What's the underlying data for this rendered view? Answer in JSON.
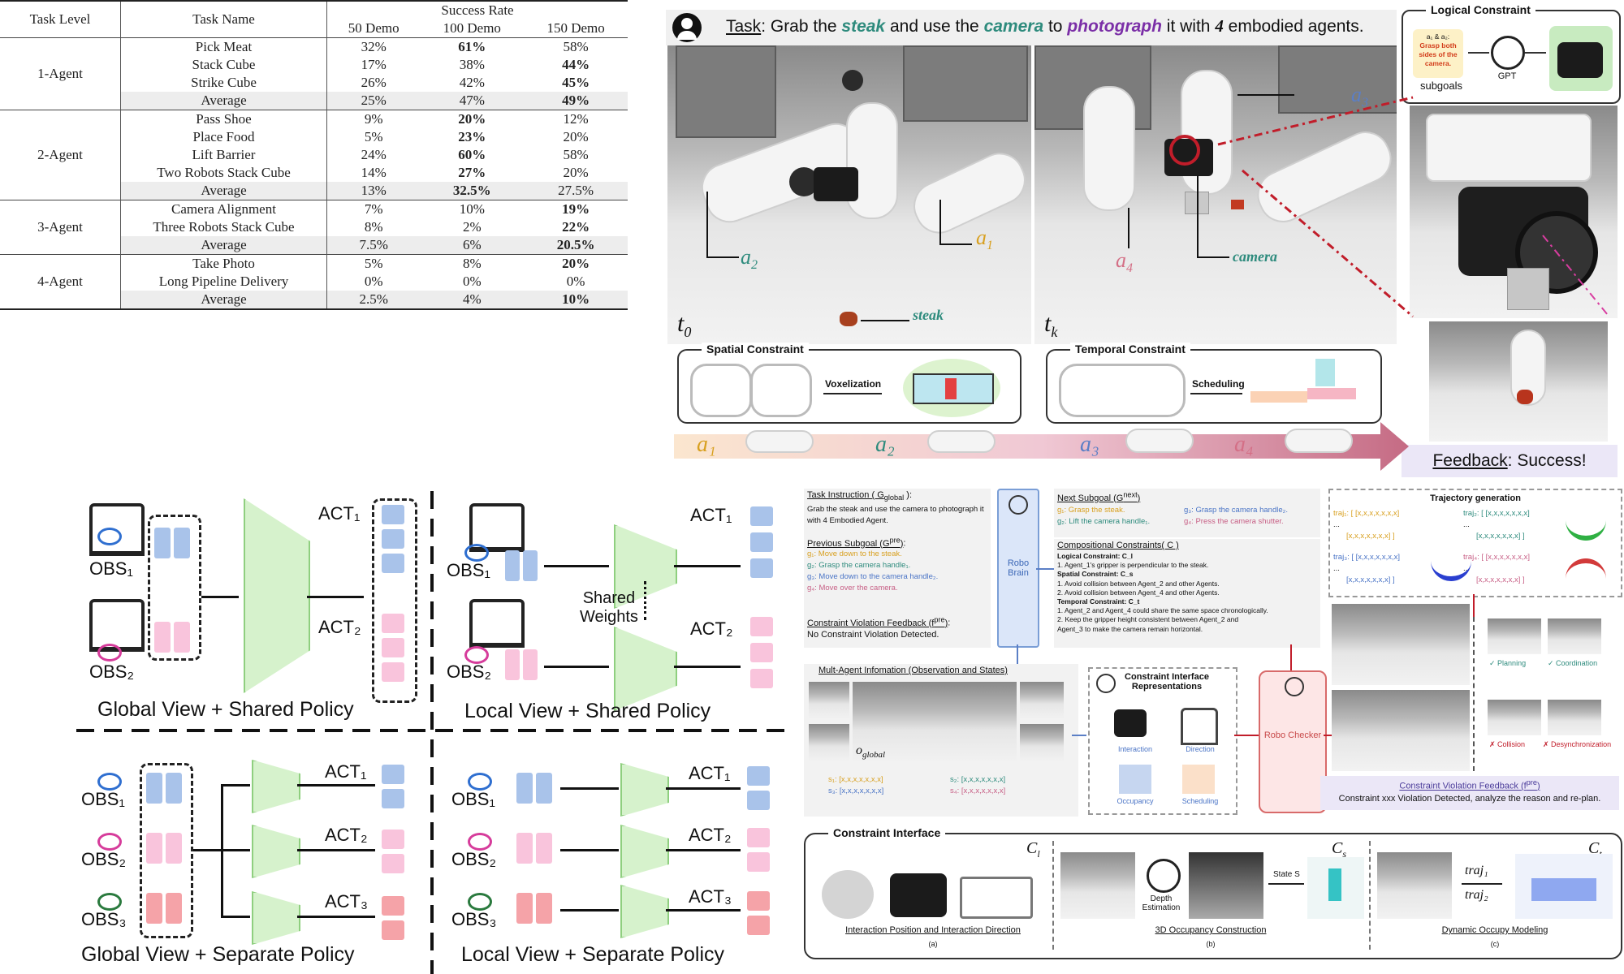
{
  "table": {
    "headers": {
      "level": "Task Level",
      "name": "Task Name",
      "success": "Success Rate",
      "cols": [
        "50 Demo",
        "100 Demo",
        "150 Demo"
      ]
    },
    "groups": [
      {
        "level": "1-Agent",
        "rows": [
          {
            "name": "Pick Meat",
            "v": [
              "32%",
              "61%",
              "58%"
            ],
            "bold": 1
          },
          {
            "name": "Stack Cube",
            "v": [
              "17%",
              "38%",
              "44%"
            ],
            "bold": 2
          },
          {
            "name": "Strike Cube",
            "v": [
              "26%",
              "42%",
              "45%"
            ],
            "bold": 2
          },
          {
            "name": "Average",
            "v": [
              "25%",
              "47%",
              "49%"
            ],
            "bold": 2,
            "avg": true
          }
        ]
      },
      {
        "level": "2-Agent",
        "rows": [
          {
            "name": "Pass Shoe",
            "v": [
              "9%",
              "20%",
              "12%"
            ],
            "bold": 1
          },
          {
            "name": "Place Food",
            "v": [
              "5%",
              "23%",
              "20%"
            ],
            "bold": 1
          },
          {
            "name": "Lift Barrier",
            "v": [
              "24%",
              "60%",
              "58%"
            ],
            "bold": 1
          },
          {
            "name": "Two Robots Stack Cube",
            "v": [
              "14%",
              "27%",
              "20%"
            ],
            "bold": 1
          },
          {
            "name": "Average",
            "v": [
              "13%",
              "32.5%",
              "27.5%"
            ],
            "bold": 1,
            "avg": true
          }
        ]
      },
      {
        "level": "3-Agent",
        "rows": [
          {
            "name": "Camera Alignment",
            "v": [
              "7%",
              "10%",
              "19%"
            ],
            "bold": 2
          },
          {
            "name": "Three Robots Stack Cube",
            "v": [
              "8%",
              "2%",
              "22%"
            ],
            "bold": 2
          },
          {
            "name": "Average",
            "v": [
              "7.5%",
              "6%",
              "20.5%"
            ],
            "bold": 2,
            "avg": true
          }
        ]
      },
      {
        "level": "4-Agent",
        "rows": [
          {
            "name": "Take Photo",
            "v": [
              "5%",
              "8%",
              "20%"
            ],
            "bold": 2
          },
          {
            "name": "Long Pipeline Delivery",
            "v": [
              "0%",
              "0%",
              "0%"
            ],
            "bold": -1
          },
          {
            "name": "Average",
            "v": [
              "2.5%",
              "4%",
              "10%"
            ],
            "bold": 2,
            "avg": true
          }
        ]
      }
    ]
  },
  "task": {
    "prefix": "Task",
    "t1": ": Grab the ",
    "steak": "steak",
    "t2": " and use the ",
    "camera": "camera",
    "t3": " to ",
    "photograph": "photograph",
    "t4": " it with ",
    "four": "4",
    "t5": " embodied agents."
  },
  "scene": {
    "a1": "a",
    "a1_sub": "1",
    "a2": "a",
    "a2_sub": "2",
    "a3": "a",
    "a3_sub": "3",
    "a4": "a",
    "a4_sub": "4",
    "steak": "steak",
    "camera": "camera",
    "t0": "t",
    "t0_sub": "0",
    "tk": "t",
    "tk_sub": "k"
  },
  "logical": {
    "title": "Logical Constraint",
    "note_head": "a₁ & a₂:",
    "note_body": "Grasp both sides of the camera.",
    "subgoals": "subgoals",
    "gpt": "GPT"
  },
  "spatial": {
    "title": "Spatial Constraint",
    "arrow": "Voxelization"
  },
  "temporal": {
    "title": "Temporal Constraint",
    "arrow": "Scheduling"
  },
  "timeline": {
    "labels": [
      "a₁",
      "a₂",
      "a₃",
      "a₄"
    ]
  },
  "feedback": {
    "prefix": "Feedback",
    "rest": ": Success!"
  },
  "policies": {
    "q1": "Global View + Shared Policy",
    "q2": "Local View + Shared Policy",
    "q3": "Global View + Separate Policy",
    "q4": "Local View + Separate Policy",
    "obs1": "OBS₁",
    "obs2": "OBS₂",
    "obs3": "OBS₃",
    "act1": "ACT₁",
    "act2": "ACT₂",
    "act3": "ACT₃",
    "shared": "Shared",
    "weights": "Weights"
  },
  "pipeline": {
    "task_instr_title": "Task Instruction ( G",
    "task_instr_sub": "global",
    "task_instr_end": " ):",
    "task_instr_text": "Grab the steak and use the camera to photograph it with 4 Embodied Agent.",
    "prev_title": "Previous Subgoal (G",
    "prev_sup": "pre",
    "prev_end": "):",
    "prev_items": [
      ": Move down to the steak.",
      ": Grasp the camera handle₁.",
      ": Move down to the camera handle₂.",
      ": Move over the camera."
    ],
    "cvf_title": "Constraint Violation Feedback (f",
    "cvf_sup": "pre",
    "cvf_end": "):",
    "cvf_text": "No Constraint Violation Detected.",
    "robo_brain": "Robo Brain",
    "robo_checker": "Robo Checker",
    "next_title": "Next Subgoal (G",
    "next_sup": "next",
    "next_end": ")",
    "next_items": [
      "Grasp the steak.",
      "Grasp the camera handle₂.",
      "Lift the camera handle₁.",
      "Press the camera shutter."
    ],
    "comp_title": "Compositional Constraints( C )",
    "comp_lines": [
      "Logical Constraint: C_l",
      "1.  Agent_1's gripper is perpendicular to the steak.",
      "Spatial Constraint: C_s",
      "1.  Avoid collision between Agent_2 and other Agents.",
      "2.  Avoid collision between Agent_4 and other Agents.",
      "Temporal Constraint: C_t",
      "1.  Agent_2 and Agent_4 could share the same space chronologically.",
      "2.  Keep the gripper height consistent between Agent_2 and",
      "Agent_3 to make the camera remain horizontal."
    ],
    "multi_title": "Mult-Agent Infomation (Observation and States)",
    "o_global": "o",
    "o_global_sub": "global",
    "states": [
      "s₁: [x,x,x,x,x,x,x]",
      "s₂: [x,x,x,x,x,x,x]",
      "s₃: [x,x,x,x,x,x,x]",
      "s₄: [x,x,x,x,x,x,x]"
    ],
    "cir_title": "Constraint Interface Representations",
    "cir_items": [
      "Interaction",
      "Direction",
      "Occupancy",
      "Scheduling"
    ],
    "traj_title": "Trajectory generation",
    "traj_items": [
      "traj₁: [ [x,x,x,x,x,x,x]",
      "traj₂: [ [x,x,x,x,x,x,x]",
      "traj₃: [ [x,x,x,x,x,x,x]",
      "traj₄: [ [x,x,x,x,x,x,x]"
    ],
    "traj_cont": "[x,x,x,x,x,x,x] ]",
    "traj_dots": "...",
    "checks": [
      "Planning",
      "Coordination",
      "Collision",
      "Desynchronization"
    ],
    "cvf2_title": "Constraint Violation Feedback (f",
    "cvf2_sup": "pre",
    "cvf2_end": ")",
    "cvf2_text": "Constraint xxx Violation Detected, analyze the reason and re-plan.",
    "ci_title": "Constraint Interface",
    "c_l": "C",
    "c_l_sub": "l",
    "c_s": "C",
    "c_s_sub": "s",
    "c_t": "C",
    "c_t_sub": "t",
    "depth": "Depth Estimation",
    "state_s": "State S",
    "traj1": "traj₁",
    "traj2": "traj₂",
    "cap_a": "Interaction Position and Interaction Direction",
    "cap_b": "3D Occupancy Construction",
    "cap_c": "Dynamic Occupy Modeling",
    "lab_a": "(a)",
    "lab_b": "(b)",
    "lab_c": "(c)"
  }
}
